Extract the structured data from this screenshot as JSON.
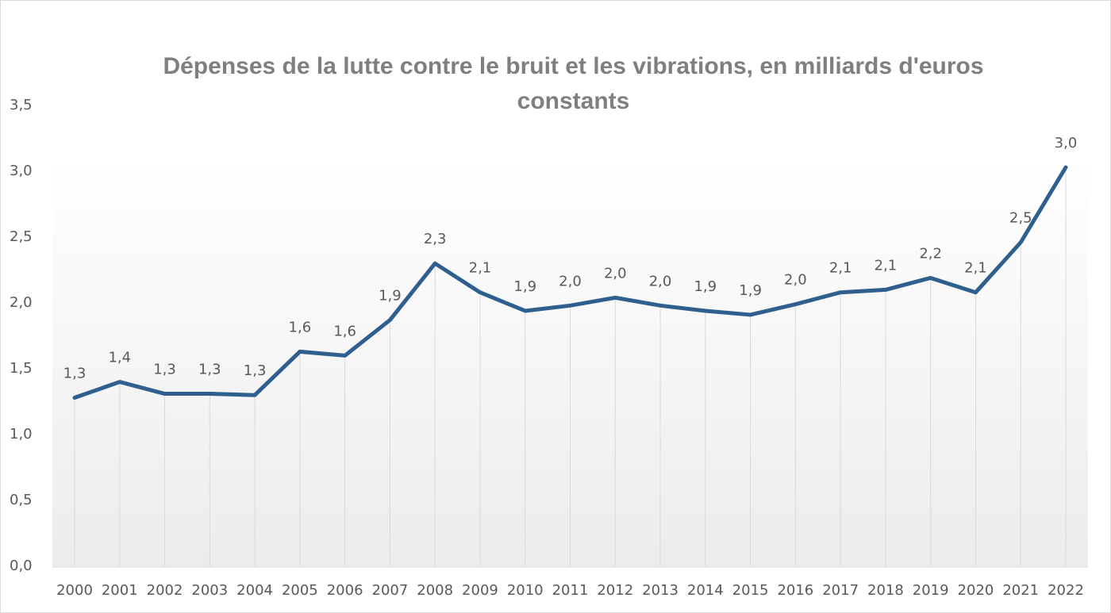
{
  "chart_data": {
    "type": "line",
    "title": "Dépenses de la lutte contre le bruit et les vibrations, en milliards d'euros constants",
    "categories": [
      "2000",
      "2001",
      "2002",
      "2003",
      "2004",
      "2005",
      "2006",
      "2007",
      "2008",
      "2009",
      "2010",
      "2011",
      "2012",
      "2013",
      "2014",
      "2015",
      "2016",
      "2017",
      "2018",
      "2019",
      "2020",
      "2021",
      "2022"
    ],
    "series": [
      {
        "color": "#2e5f8e",
        "values": [
          1.28,
          1.4,
          1.31,
          1.31,
          1.3,
          1.63,
          1.6,
          1.87,
          2.3,
          2.08,
          1.94,
          1.98,
          2.04,
          1.98,
          1.94,
          1.91,
          1.99,
          2.08,
          2.1,
          2.19,
          2.08,
          2.46,
          3.03
        ],
        "value_labels": [
          "1,3",
          "1,4",
          "1,3",
          "1,3",
          "1,3",
          "1,6",
          "1,6",
          "1,9",
          "2,3",
          "2,1",
          "1,9",
          "2,0",
          "2,0",
          "2,0",
          "1,9",
          "1,9",
          "2,0",
          "2,1",
          "2,1",
          "2,2",
          "2,1",
          "2,5",
          "3,0"
        ]
      }
    ],
    "ylim": [
      0,
      3.5
    ],
    "yticks": [
      {
        "value": 0,
        "label": "0,0"
      },
      {
        "value": 0.5,
        "label": "0,5"
      },
      {
        "value": 1,
        "label": "1,0"
      },
      {
        "value": 1.5,
        "label": "1,5"
      },
      {
        "value": 2,
        "label": "2,0"
      },
      {
        "value": 2.5,
        "label": "2,5"
      },
      {
        "value": 3,
        "label": "3,0"
      },
      {
        "value": 3.5,
        "label": "3,5"
      }
    ]
  }
}
